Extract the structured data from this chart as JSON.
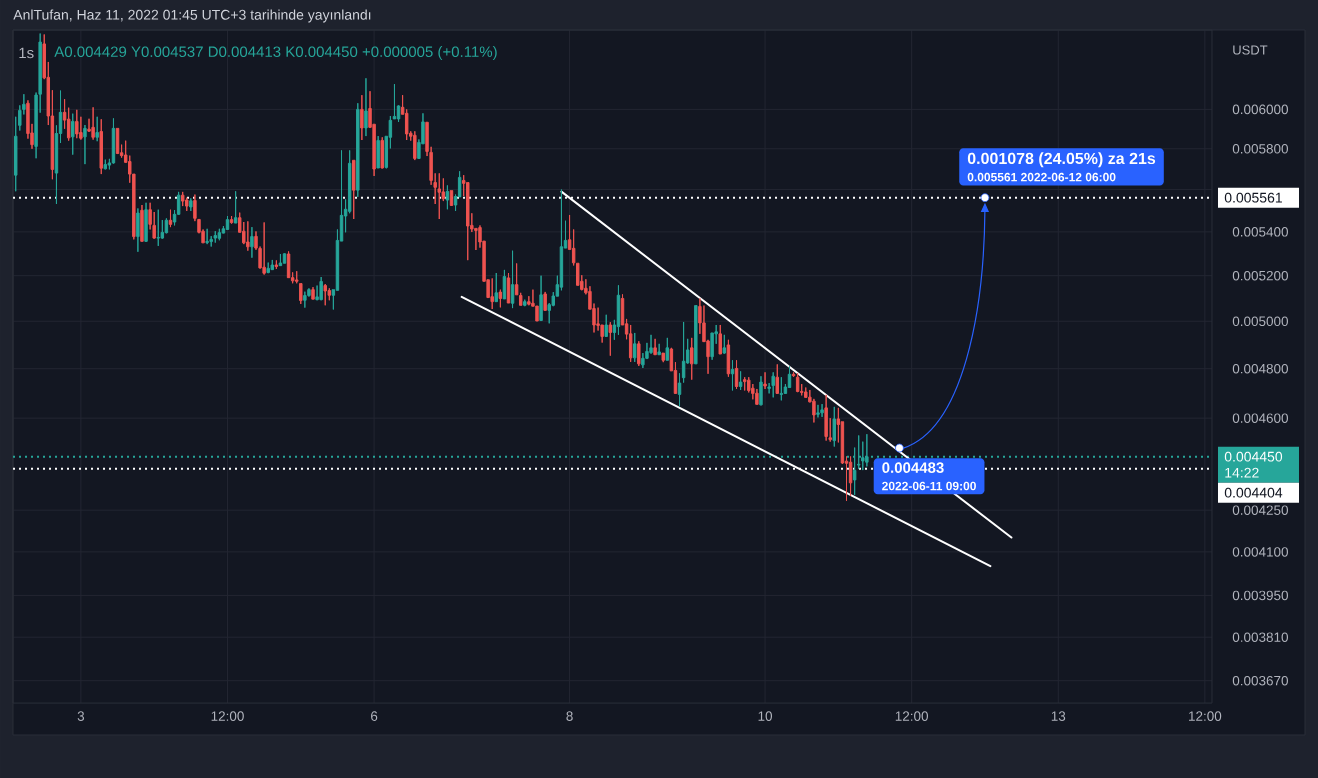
{
  "chart_data": {
    "type": "candlestick",
    "title": "1s",
    "subtitle": "A0.004429 Y0.004537 D0.004413 K0.004450 +0.000005 (+0.11%)",
    "ylabel": "USDT",
    "annotations": [
      "AnlTufan, Haz 11, 2022 01:45 UTC+3 tarihinde yayınlandı",
      "14:22",
      {
        "text": "0.001078 (24.05%) za 21s",
        "x": "2022-06-12T06:00",
        "y": 0.005561
      },
      {
        "text": "0.005561 2022-06-12 06:00",
        "x": "2022-06-12T06:00",
        "y": 0.005561
      },
      {
        "text": "0.004483",
        "x": "2022-06-11T09:00",
        "y": 0.004483
      },
      "2022-06-11 09:00"
    ],
    "x": [
      "2022-06-02T08:00",
      "2022-06-02T09:00",
      "2022-06-02T10:00",
      "2022-06-02T11:00",
      "2022-06-02T12:00",
      "2022-06-02T13:00",
      "2022-06-02T14:00",
      "2022-06-02T15:00",
      "2022-06-02T16:00",
      "2022-06-02T17:00",
      "2022-06-02T18:00",
      "2022-06-02T19:00",
      "2022-06-02T20:00",
      "2022-06-02T21:00",
      "2022-06-02T22:00",
      "2022-06-02T23:00",
      "2022-06-03T00:00",
      "2022-06-03T01:00",
      "2022-06-03T02:00",
      "2022-06-03T03:00",
      "2022-06-03T04:00",
      "2022-06-03T05:00",
      "2022-06-03T06:00",
      "2022-06-03T07:00",
      "2022-06-03T08:00",
      "2022-06-03T09:00",
      "2022-06-03T10:00",
      "2022-06-03T11:00",
      "2022-06-03T12:00",
      "2022-06-03T13:00",
      "2022-06-03T14:00",
      "2022-06-03T15:00",
      "2022-06-03T16:00",
      "2022-06-03T17:00",
      "2022-06-03T18:00",
      "2022-06-03T19:00",
      "2022-06-03T20:00",
      "2022-06-03T21:00",
      "2022-06-03T22:00",
      "2022-06-03T23:00",
      "2022-06-04T00:00",
      "2022-06-04T01:00",
      "2022-06-04T02:00",
      "2022-06-04T03:00",
      "2022-06-04T04:00",
      "2022-06-04T05:00",
      "2022-06-04T06:00",
      "2022-06-04T07:00",
      "2022-06-04T08:00",
      "2022-06-04T09:00",
      "2022-06-04T10:00",
      "2022-06-04T11:00",
      "2022-06-04T12:00",
      "2022-06-04T13:00",
      "2022-06-04T14:00",
      "2022-06-04T15:00",
      "2022-06-04T16:00",
      "2022-06-04T17:00",
      "2022-06-04T18:00",
      "2022-06-04T19:00",
      "2022-06-04T20:00",
      "2022-06-04T21:00",
      "2022-06-04T22:00",
      "2022-06-04T23:00",
      "2022-06-05T00:00",
      "2022-06-05T01:00",
      "2022-06-05T02:00",
      "2022-06-05T03:00",
      "2022-06-05T04:00",
      "2022-06-05T05:00",
      "2022-06-05T06:00",
      "2022-06-05T07:00",
      "2022-06-05T08:00",
      "2022-06-05T09:00",
      "2022-06-05T10:00",
      "2022-06-05T11:00",
      "2022-06-05T12:00",
      "2022-06-05T13:00",
      "2022-06-05T14:00",
      "2022-06-05T15:00",
      "2022-06-05T16:00",
      "2022-06-05T17:00",
      "2022-06-05T18:00",
      "2022-06-05T19:00",
      "2022-06-05T20:00",
      "2022-06-05T21:00",
      "2022-06-05T22:00",
      "2022-06-05T23:00",
      "2022-06-06T00:00",
      "2022-06-06T01:00",
      "2022-06-06T02:00",
      "2022-06-06T03:00",
      "2022-06-06T04:00",
      "2022-06-06T05:00",
      "2022-06-06T06:00",
      "2022-06-06T07:00",
      "2022-06-06T08:00",
      "2022-06-06T09:00",
      "2022-06-06T10:00",
      "2022-06-06T11:00",
      "2022-06-06T12:00",
      "2022-06-06T13:00",
      "2022-06-06T14:00",
      "2022-06-06T15:00",
      "2022-06-06T16:00",
      "2022-06-06T17:00",
      "2022-06-06T18:00",
      "2022-06-06T19:00",
      "2022-06-06T20:00",
      "2022-06-06T21:00",
      "2022-06-06T22:00",
      "2022-06-06T23:00",
      "2022-06-07T00:00",
      "2022-06-07T01:00",
      "2022-06-07T02:00",
      "2022-06-07T03:00",
      "2022-06-07T04:00",
      "2022-06-07T05:00",
      "2022-06-07T06:00",
      "2022-06-07T07:00",
      "2022-06-07T08:00",
      "2022-06-07T09:00",
      "2022-06-07T10:00",
      "2022-06-07T11:00",
      "2022-06-07T12:00",
      "2022-06-07T13:00",
      "2022-06-07T14:00",
      "2022-06-07T15:00",
      "2022-06-07T16:00",
      "2022-06-07T17:00",
      "2022-06-07T18:00",
      "2022-06-07T19:00",
      "2022-06-07T20:00",
      "2022-06-07T21:00",
      "2022-06-07T22:00",
      "2022-06-07T23:00",
      "2022-06-08T00:00",
      "2022-06-08T01:00",
      "2022-06-08T02:00",
      "2022-06-08T03:00",
      "2022-06-08T04:00",
      "2022-06-08T05:00",
      "2022-06-08T06:00",
      "2022-06-08T07:00",
      "2022-06-08T08:00",
      "2022-06-08T09:00",
      "2022-06-08T10:00",
      "2022-06-08T11:00",
      "2022-06-08T12:00",
      "2022-06-08T13:00",
      "2022-06-08T14:00",
      "2022-06-08T15:00",
      "2022-06-08T16:00",
      "2022-06-08T17:00",
      "2022-06-08T18:00",
      "2022-06-08T19:00",
      "2022-06-08T20:00",
      "2022-06-08T21:00",
      "2022-06-08T22:00",
      "2022-06-08T23:00",
      "2022-06-09T00:00",
      "2022-06-09T01:00",
      "2022-06-09T02:00",
      "2022-06-09T03:00",
      "2022-06-09T04:00",
      "2022-06-09T05:00",
      "2022-06-09T06:00",
      "2022-06-09T07:00",
      "2022-06-09T08:00",
      "2022-06-09T09:00",
      "2022-06-09T10:00",
      "2022-06-09T11:00",
      "2022-06-09T12:00",
      "2022-06-09T13:00",
      "2022-06-09T14:00",
      "2022-06-09T15:00",
      "2022-06-09T16:00",
      "2022-06-09T17:00",
      "2022-06-09T18:00",
      "2022-06-09T19:00",
      "2022-06-09T20:00",
      "2022-06-09T21:00",
      "2022-06-09T22:00",
      "2022-06-09T23:00",
      "2022-06-10T00:00",
      "2022-06-10T01:00",
      "2022-06-10T02:00",
      "2022-06-10T03:00",
      "2022-06-10T04:00",
      "2022-06-10T05:00",
      "2022-06-10T06:00",
      "2022-06-10T07:00",
      "2022-06-10T08:00",
      "2022-06-10T09:00",
      "2022-06-10T10:00",
      "2022-06-10T11:00",
      "2022-06-10T12:00",
      "2022-06-10T13:00",
      "2022-06-10T14:00",
      "2022-06-10T15:00",
      "2022-06-10T16:00",
      "2022-06-10T17:00",
      "2022-06-10T18:00",
      "2022-06-10T19:00",
      "2022-06-10T20:00",
      "2022-06-10T21:00",
      "2022-06-10T22:00",
      "2022-06-10T23:00",
      "2022-06-11T00:00",
      "2022-06-11T01:00"
    ],
    "ohlc": [
      [
        0.00567,
        0.005962,
        0.005592,
        0.005863
      ],
      [
        0.005918,
        0.006021,
        0.005892,
        0.005995
      ],
      [
        0.006,
        0.006079,
        0.005974,
        0.006026
      ],
      [
        0.006032,
        0.006047,
        0.005851,
        0.005877
      ],
      [
        0.00588,
        0.005926,
        0.0058,
        0.005821
      ],
      [
        0.005812,
        0.006088,
        0.005753,
        0.006075
      ],
      [
        0.006079,
        0.006405,
        0.005983,
        0.006358
      ],
      [
        0.006348,
        0.0064,
        0.006158,
        0.006165
      ],
      [
        0.006168,
        0.00625,
        0.00592,
        0.005966
      ],
      [
        0.005966,
        0.0061,
        0.00565,
        0.005698
      ],
      [
        0.00568,
        0.005918,
        0.005531,
        0.005877
      ],
      [
        0.005877,
        0.006098,
        0.005829,
        0.005985
      ],
      [
        0.005985,
        0.006053,
        0.005901,
        0.005945
      ],
      [
        0.00595,
        0.006009,
        0.005841,
        0.005855
      ],
      [
        0.00586,
        0.005978,
        0.005771,
        0.005938
      ],
      [
        0.005938,
        0.005998,
        0.005853,
        0.005875
      ],
      [
        0.005882,
        0.005962,
        0.005846,
        0.005853
      ],
      [
        0.00586,
        0.00592,
        0.005724,
        0.005903
      ],
      [
        0.005899,
        0.005952,
        0.005885,
        0.005889
      ],
      [
        0.005908,
        0.006011,
        0.005846,
        0.005858
      ],
      [
        0.005858,
        0.005962,
        0.005838,
        0.005882
      ],
      [
        0.005887,
        0.005949,
        0.005675,
        0.005704
      ],
      [
        0.005701,
        0.005746,
        0.005698,
        0.005722
      ],
      [
        0.005719,
        0.00575,
        0.005698,
        0.00573
      ],
      [
        0.00573,
        0.005954,
        0.005727,
        0.005903
      ],
      [
        0.005903,
        0.005903,
        0.005774,
        0.005777
      ],
      [
        0.00578,
        0.005821,
        0.005756,
        0.005766
      ],
      [
        0.005769,
        0.005841,
        0.00573,
        0.005733
      ],
      [
        0.005737,
        0.005766,
        0.005633,
        0.005675
      ],
      [
        0.005675,
        0.005675,
        0.005365,
        0.005378
      ],
      [
        0.005378,
        0.00551,
        0.005308,
        0.005488
      ],
      [
        0.005501,
        0.005526,
        0.005356,
        0.005356
      ],
      [
        0.005356,
        0.005537,
        0.005353,
        0.005504
      ],
      [
        0.005504,
        0.005537,
        0.005411,
        0.005435
      ],
      [
        0.00543,
        0.005493,
        0.005368,
        0.005371
      ],
      [
        0.005371,
        0.005504,
        0.005335,
        0.005374
      ],
      [
        0.005371,
        0.005455,
        0.005368,
        0.005397
      ],
      [
        0.005396,
        0.005463,
        0.005393,
        0.005454
      ],
      [
        0.005454,
        0.005504,
        0.005422,
        0.005435
      ],
      [
        0.005446,
        0.005502,
        0.00543,
        0.005482
      ],
      [
        0.005482,
        0.005589,
        0.005479,
        0.005573
      ],
      [
        0.005573,
        0.005589,
        0.005521,
        0.005545
      ],
      [
        0.00555,
        0.005561,
        0.005498,
        0.005521
      ],
      [
        0.005517,
        0.005558,
        0.005498,
        0.005546
      ],
      [
        0.005548,
        0.005576,
        0.00545,
        0.005463
      ],
      [
        0.005458,
        0.005458,
        0.005393,
        0.005398
      ],
      [
        0.005403,
        0.005411,
        0.005349,
        0.005349
      ],
      [
        0.00535,
        0.005414,
        0.005343,
        0.005356
      ],
      [
        0.005355,
        0.00538,
        0.005332,
        0.005365
      ],
      [
        0.005371,
        0.005403,
        0.00535,
        0.005383
      ],
      [
        0.00537,
        0.005414,
        0.005361,
        0.005396
      ],
      [
        0.005394,
        0.005427,
        0.005393,
        0.005414
      ],
      [
        0.005411,
        0.005474,
        0.005411,
        0.005457
      ],
      [
        0.005457,
        0.005474,
        0.005438,
        0.005443
      ],
      [
        0.005441,
        0.005592,
        0.005441,
        0.005466
      ],
      [
        0.005466,
        0.00549,
        0.005396,
        0.005398
      ],
      [
        0.005403,
        0.005446,
        0.005343,
        0.005349
      ],
      [
        0.005353,
        0.005449,
        0.005313,
        0.005331
      ],
      [
        0.005331,
        0.005422,
        0.005281,
        0.005378
      ],
      [
        0.005379,
        0.005402,
        0.005317,
        0.005325
      ],
      [
        0.005323,
        0.005332,
        0.005232,
        0.005235
      ],
      [
        0.005238,
        0.005444,
        0.005205,
        0.005211
      ],
      [
        0.005214,
        0.005259,
        0.005211,
        0.005233
      ],
      [
        0.005227,
        0.005271,
        0.005227,
        0.005248
      ],
      [
        0.005248,
        0.005269,
        0.00523,
        0.005241
      ],
      [
        0.005245,
        0.005298,
        0.005245,
        0.005257
      ],
      [
        0.005256,
        0.005301,
        0.005256,
        0.005299
      ],
      [
        0.005298,
        0.00531,
        0.005191,
        0.005191
      ],
      [
        0.005191,
        0.005215,
        0.005166,
        0.005177
      ],
      [
        0.005181,
        0.00522,
        0.005166,
        0.005175
      ],
      [
        0.005165,
        0.005165,
        0.005075,
        0.00509
      ],
      [
        0.005091,
        0.005129,
        0.005059,
        0.005112
      ],
      [
        0.005112,
        0.005144,
        0.005107,
        0.005138
      ],
      [
        0.005138,
        0.005149,
        0.005096,
        0.005096
      ],
      [
        0.005094,
        0.005156,
        0.005091,
        0.005106
      ],
      [
        0.005094,
        0.005194,
        0.005091,
        0.005174
      ],
      [
        0.005156,
        0.005163,
        0.005069,
        0.005132
      ],
      [
        0.005134,
        0.005144,
        0.005091,
        0.005113
      ],
      [
        0.005113,
        0.005138,
        0.005051,
        0.005138
      ],
      [
        0.005135,
        0.005411,
        0.005135,
        0.00536
      ],
      [
        0.005357,
        0.005792,
        0.005357,
        0.005477
      ],
      [
        0.005474,
        0.005553,
        0.005398,
        0.005506
      ],
      [
        0.005496,
        0.005792,
        0.005487,
        0.005728
      ],
      [
        0.005743,
        0.005743,
        0.00546,
        0.005597
      ],
      [
        0.005597,
        0.006032,
        0.005565,
        0.006
      ],
      [
        0.006,
        0.006074,
        0.005844,
        0.005905
      ],
      [
        0.005905,
        0.006163,
        0.005864,
        0.005992
      ],
      [
        0.006005,
        0.006095,
        0.005905,
        0.005908
      ],
      [
        0.005924,
        0.005924,
        0.005666,
        0.0057
      ],
      [
        0.005705,
        0.005864,
        0.005705,
        0.005842
      ],
      [
        0.005842,
        0.005858,
        0.005703,
        0.005705
      ],
      [
        0.005708,
        0.005864,
        0.005703,
        0.005863
      ],
      [
        0.005858,
        0.005966,
        0.005802,
        0.005944
      ],
      [
        0.005951,
        0.006132,
        0.005951,
        0.005964
      ],
      [
        0.005951,
        0.006021,
        0.005936,
        0.006018
      ],
      [
        0.006011,
        0.006074,
        0.005975,
        0.005975
      ],
      [
        0.00598,
        0.006,
        0.005844,
        0.005875
      ],
      [
        0.005878,
        0.005888,
        0.005841,
        0.005863
      ],
      [
        0.005868,
        0.005888,
        0.005744,
        0.005752
      ],
      [
        0.005752,
        0.005847,
        0.005752,
        0.005832
      ],
      [
        0.005825,
        0.00598,
        0.005825,
        0.005936
      ],
      [
        0.005934,
        0.005934,
        0.005764,
        0.005787
      ],
      [
        0.005782,
        0.00581,
        0.005623,
        0.005644
      ],
      [
        0.005634,
        0.005679,
        0.005531,
        0.005611
      ],
      [
        0.005603,
        0.005679,
        0.00546,
        0.005587
      ],
      [
        0.005589,
        0.005654,
        0.005545,
        0.005556
      ],
      [
        0.00555,
        0.00562,
        0.005506,
        0.005591
      ],
      [
        0.005595,
        0.005595,
        0.005524,
        0.005524
      ],
      [
        0.005526,
        0.005576,
        0.005498,
        0.005567
      ],
      [
        0.005565,
        0.005689,
        0.005565,
        0.005659
      ],
      [
        0.005644,
        0.00567,
        0.005569,
        0.00563
      ],
      [
        0.005634,
        0.005634,
        0.00527,
        0.005427
      ],
      [
        0.00543,
        0.005487,
        0.005399,
        0.005413
      ],
      [
        0.005416,
        0.005416,
        0.005316,
        0.005406
      ],
      [
        0.00542,
        0.00543,
        0.005327,
        0.005353
      ],
      [
        0.005357,
        0.005357,
        0.005175,
        0.005175
      ],
      [
        0.005182,
        0.005182,
        0.005103,
        0.005103
      ],
      [
        0.005107,
        0.005188,
        0.005053,
        0.005085
      ],
      [
        0.005085,
        0.005212,
        0.005085,
        0.005124
      ],
      [
        0.005127,
        0.005138,
        0.00506,
        0.005099
      ],
      [
        0.005097,
        0.005226,
        0.005097,
        0.005196
      ],
      [
        0.00519,
        0.005212,
        0.005079,
        0.005079
      ],
      [
        0.005078,
        0.005313,
        0.005057,
        0.00516
      ],
      [
        0.00516,
        0.005255,
        0.005115,
        0.005115
      ],
      [
        0.005112,
        0.005124,
        0.005069,
        0.005069
      ],
      [
        0.005069,
        0.005094,
        0.005065,
        0.005085
      ],
      [
        0.005085,
        0.005109,
        0.005069,
        0.005074
      ],
      [
        0.005078,
        0.005138,
        0.005065,
        0.005065
      ],
      [
        0.005066,
        0.005066,
        0.005001,
        0.005001
      ],
      [
        0.005003,
        0.0052,
        0.005003,
        0.005115
      ],
      [
        0.005119,
        0.005128,
        0.005047,
        0.005047
      ],
      [
        0.005047,
        0.005079,
        0.004991,
        0.005072
      ],
      [
        0.005069,
        0.005127,
        0.005065,
        0.00511
      ],
      [
        0.005109,
        0.0052,
        0.005109,
        0.00516
      ],
      [
        0.005149,
        0.0056,
        0.005135,
        0.005331
      ],
      [
        0.005325,
        0.005452,
        0.005325,
        0.00536
      ],
      [
        0.005363,
        0.005479,
        0.005319,
        0.005319
      ],
      [
        0.005324,
        0.005411,
        0.005246,
        0.005258
      ],
      [
        0.005256,
        0.005256,
        0.005157,
        0.005157
      ],
      [
        0.005175,
        0.005202,
        0.005135,
        0.005139
      ],
      [
        0.005144,
        0.005184,
        0.005117,
        0.005124
      ],
      [
        0.00513,
        0.005153,
        0.005052,
        0.005052
      ],
      [
        0.005055,
        0.005077,
        0.004952,
        0.004984
      ],
      [
        0.004989,
        0.005059,
        0.00496,
        0.004982
      ],
      [
        0.004984,
        0.004984,
        0.004909,
        0.004935
      ],
      [
        0.004935,
        0.005028,
        0.004935,
        0.004984
      ],
      [
        0.004984,
        0.004996,
        0.004854,
        0.004952
      ],
      [
        0.004952,
        0.005006,
        0.004921,
        0.004984
      ],
      [
        0.004977,
        0.005157,
        0.004942,
        0.005113
      ],
      [
        0.005099,
        0.005117,
        0.004984,
        0.004984
      ],
      [
        0.004989,
        0.00501,
        0.004923,
        0.004945
      ],
      [
        0.004946,
        0.004984,
        0.004828,
        0.004845
      ],
      [
        0.004845,
        0.00495,
        0.004828,
        0.004904
      ],
      [
        0.004904,
        0.004915,
        0.004811,
        0.00482
      ],
      [
        0.004816,
        0.004865,
        0.004803,
        0.004843
      ],
      [
        0.004843,
        0.004908,
        0.00484,
        0.004872
      ],
      [
        0.004867,
        0.004942,
        0.004862,
        0.004887
      ],
      [
        0.004887,
        0.004925,
        0.004858,
        0.004858
      ],
      [
        0.004858,
        0.004904,
        0.004858,
        0.00487
      ],
      [
        0.004865,
        0.004865,
        0.004827,
        0.004835
      ],
      [
        0.004835,
        0.004929,
        0.004835,
        0.004887
      ],
      [
        0.004882,
        0.004887,
        0.004791,
        0.004791
      ],
      [
        0.004793,
        0.004827,
        0.004699,
        0.004699
      ],
      [
        0.004695,
        0.004781,
        0.004647,
        0.004741
      ],
      [
        0.004763,
        0.004997,
        0.004743,
        0.004831
      ],
      [
        0.004824,
        0.004925,
        0.004821,
        0.004878
      ],
      [
        0.004887,
        0.004929,
        0.004755,
        0.00482
      ],
      [
        0.00482,
        0.005068,
        0.00482,
        0.005068
      ],
      [
        0.005064,
        0.005099,
        0.004946,
        0.004993
      ],
      [
        0.004993,
        0.005068,
        0.004913,
        0.004913
      ],
      [
        0.004916,
        0.004921,
        0.004779,
        0.00485
      ],
      [
        0.00485,
        0.00495,
        0.004837,
        0.00495
      ],
      [
        0.004946,
        0.004984,
        0.004904,
        0.004955
      ],
      [
        0.004946,
        0.004984,
        0.004861,
        0.004861
      ],
      [
        0.004865,
        0.004942,
        0.004862,
        0.004887
      ],
      [
        0.004899,
        0.004921,
        0.004767,
        0.004779
      ],
      [
        0.004779,
        0.004835,
        0.004711,
        0.004797
      ],
      [
        0.004801,
        0.004835,
        0.004717,
        0.004727
      ],
      [
        0.004727,
        0.004789,
        0.004713,
        0.004745
      ],
      [
        0.004755,
        0.004765,
        0.004711,
        0.004747
      ],
      [
        0.004753,
        0.004765,
        0.004703,
        0.004711
      ],
      [
        0.00472,
        0.004737,
        0.004675,
        0.004699
      ],
      [
        0.0047,
        0.004717,
        0.004655,
        0.004655
      ],
      [
        0.004653,
        0.004769,
        0.004651,
        0.004745
      ],
      [
        0.004737,
        0.004785,
        0.004717,
        0.004729
      ],
      [
        0.004719,
        0.004741,
        0.004699,
        0.004725
      ],
      [
        0.004731,
        0.004785,
        0.004683,
        0.004769
      ],
      [
        0.004765,
        0.004818,
        0.004699,
        0.004699
      ],
      [
        0.004695,
        0.004765,
        0.004671,
        0.004699
      ],
      [
        0.004699,
        0.004737,
        0.004699,
        0.004725
      ],
      [
        0.004723,
        0.00481,
        0.004721,
        0.004777
      ],
      [
        0.004777,
        0.004785,
        0.004767,
        0.004771
      ],
      [
        0.004765,
        0.004781,
        0.004704,
        0.004707
      ],
      [
        0.004707,
        0.004737,
        0.004691,
        0.004703
      ],
      [
        0.004705,
        0.004723,
        0.004683,
        0.004683
      ],
      [
        0.004684,
        0.004713,
        0.004663,
        0.004665
      ],
      [
        0.004668,
        0.004677,
        0.004583,
        0.004613
      ],
      [
        0.004615,
        0.004653,
        0.004603,
        0.004621
      ],
      [
        0.004621,
        0.004656,
        0.004605,
        0.004633
      ],
      [
        0.004641,
        0.004693,
        0.004512,
        0.004528
      ],
      [
        0.004523,
        0.0046,
        0.004508,
        0.004516
      ],
      [
        0.004512,
        0.004645,
        0.004489,
        0.004597
      ],
      [
        0.004597,
        0.004641,
        0.004505,
        0.004575
      ],
      [
        0.004586,
        0.004586,
        0.004422,
        0.004426
      ],
      [
        0.004433,
        0.004451,
        0.004284,
        0.004425
      ],
      [
        0.004429,
        0.004451,
        0.004303,
        0.004351
      ],
      [
        0.004362,
        0.004485,
        0.004306,
        0.004398
      ],
      [
        0.004418,
        0.004532,
        0.004403,
        0.004421
      ],
      [
        0.004434,
        0.004508,
        0.004399,
        0.004446
      ],
      [
        0.004429,
        0.004537,
        0.004413,
        0.00445
      ]
    ],
    "colors": [
      "#26a69a",
      "#26a69a",
      "#26a69a",
      "#ef5350",
      "#ef5350",
      "#26a69a",
      "#26a69a",
      "#ef5350",
      "#ef5350",
      "#ef5350",
      "#26a69a",
      "#26a69a",
      "#ef5350",
      "#ef5350",
      "#26a69a",
      "#ef5350",
      "#ef5350",
      "#26a69a",
      "#ef5350",
      "#ef5350",
      "#26a69a",
      "#ef5350",
      "#26a69a",
      "#26a69a",
      "#26a69a",
      "#ef5350",
      "#ef5350",
      "#ef5350",
      "#ef5350",
      "#ef5350",
      "#26a69a",
      "#ef5350",
      "#26a69a",
      "#ef5350",
      "#ef5350",
      "#26a69a",
      "#26a69a",
      "#26a69a",
      "#ef5350",
      "#26a69a",
      "#26a69a",
      "#ef5350",
      "#ef5350",
      "#26a69a",
      "#ef5350",
      "#ef5350",
      "#ef5350",
      "#26a69a",
      "#26a69a",
      "#26a69a",
      "#26a69a",
      "#26a69a",
      "#26a69a",
      "#ef5350",
      "#26a69a",
      "#ef5350",
      "#ef5350",
      "#ef5350",
      "#26a69a",
      "#ef5350",
      "#ef5350",
      "#ef5350",
      "#26a69a",
      "#26a69a",
      "#ef5350",
      "#26a69a",
      "#26a69a",
      "#ef5350",
      "#ef5350",
      "#ef5350",
      "#ef5350",
      "#26a69a",
      "#26a69a",
      "#ef5350",
      "#26a69a",
      "#26a69a",
      "#ef5350",
      "#ef5350",
      "#26a69a",
      "#26a69a",
      "#26a69a",
      "#26a69a",
      "#26a69a",
      "#ef5350",
      "#26a69a",
      "#ef5350",
      "#26a69a",
      "#ef5350",
      "#ef5350",
      "#26a69a",
      "#ef5350",
      "#26a69a",
      "#26a69a",
      "#26a69a",
      "#26a69a",
      "#ef5350",
      "#ef5350",
      "#ef5350",
      "#ef5350",
      "#26a69a",
      "#26a69a",
      "#ef5350",
      "#ef5350",
      "#ef5350",
      "#ef5350",
      "#ef5350",
      "#26a69a",
      "#ef5350",
      "#26a69a",
      "#26a69a",
      "#ef5350",
      "#ef5350",
      "#ef5350",
      "#ef5350",
      "#ef5350",
      "#ef5350",
      "#ef5350",
      "#ef5350",
      "#26a69a",
      "#ef5350",
      "#26a69a",
      "#ef5350",
      "#26a69a",
      "#ef5350",
      "#ef5350",
      "#26a69a",
      "#ef5350",
      "#ef5350",
      "#ef5350",
      "#26a69a",
      "#ef5350",
      "#26a69a",
      "#26a69a",
      "#26a69a",
      "#26a69a",
      "#26a69a",
      "#ef5350",
      "#ef5350",
      "#ef5350",
      "#ef5350",
      "#ef5350",
      "#ef5350",
      "#ef5350",
      "#ef5350",
      "#ef5350",
      "#26a69a",
      "#ef5350",
      "#26a69a",
      "#26a69a",
      "#ef5350",
      "#ef5350",
      "#ef5350",
      "#26a69a",
      "#ef5350",
      "#26a69a",
      "#26a69a",
      "#26a69a",
      "#ef5350",
      "#26a69a",
      "#ef5350",
      "#26a69a",
      "#ef5350",
      "#ef5350",
      "#26a69a",
      "#26a69a",
      "#26a69a",
      "#ef5350",
      "#26a69a",
      "#ef5350",
      "#ef5350",
      "#ef5350",
      "#26a69a",
      "#26a69a",
      "#ef5350",
      "#26a69a",
      "#ef5350",
      "#26a69a",
      "#ef5350",
      "#26a69a",
      "#ef5350",
      "#ef5350",
      "#ef5350",
      "#ef5350",
      "#26a69a",
      "#ef5350",
      "#26a69a",
      "#26a69a",
      "#ef5350",
      "#26a69a",
      "#26a69a",
      "#26a69a",
      "#ef5350",
      "#ef5350",
      "#ef5350",
      "#ef5350",
      "#ef5350",
      "#ef5350",
      "#26a69a",
      "#26a69a",
      "#ef5350",
      "#ef5350",
      "#26a69a",
      "#ef5350",
      "#ef5350",
      "#ef5350",
      "#ef5350",
      "#26a69a",
      "#26a69a",
      "#26a69a",
      "#26a69a"
    ],
    "series": [
      {
        "type": "line",
        "color": "#ffffff",
        "x": [
          "2022-06-07T22:00",
          "2022-06-12T12:30"
        ],
        "values": [
          0.00559,
          0.004151
        ]
      },
      {
        "type": "line",
        "color": "#ffffff",
        "x": [
          "2022-06-06T21:30",
          "2022-06-12T07:20"
        ],
        "values": [
          0.005106,
          0.00405
        ]
      }
    ],
    "ref_lines": [
      {
        "axis": "y",
        "value": 0.005561,
        "label": "0.005561",
        "color": "#ffffff",
        "line_style": "dotted"
      },
      {
        "axis": "y",
        "value": 0.004404,
        "label": "0.004404",
        "color": "#ffffff",
        "line_style": "dotted"
      },
      {
        "axis": "y",
        "value": 0.00445,
        "label": "0.004450",
        "color": "#26a69a",
        "line_style": "dotted"
      }
    ],
    "xlim": [
      "2022-06-02T07:20",
      "2022-06-14T13:45"
    ],
    "ylim": [
      0.0036,
      0.006424
    ],
    "xticks": [
      {
        "value": "2022-06-03T00:00",
        "label": "3"
      },
      {
        "value": "2022-06-04T12:00",
        "label": "12:00"
      },
      {
        "value": "2022-06-06T00:00",
        "label": "6"
      },
      {
        "value": "2022-06-08T00:00",
        "label": "8"
      },
      {
        "value": "2022-06-10T00:00",
        "label": "10"
      },
      {
        "value": "2022-06-11T12:00",
        "label": "12:00"
      },
      {
        "value": "2022-06-13T00:00",
        "label": "13"
      },
      {
        "value": "2022-06-14T12:00",
        "label": "12:00"
      }
    ],
    "yticks": [
      {
        "value": 0.006,
        "label": "0.006000"
      },
      {
        "value": 0.0058,
        "label": "0.005800"
      },
      {
        "value": 0.0056,
        "label": null
      },
      {
        "value": 0.0054,
        "label": "0.005400"
      },
      {
        "value": 0.0052,
        "label": "0.005200"
      },
      {
        "value": 0.005,
        "label": "0.005000"
      },
      {
        "value": 0.0048,
        "label": "0.004800"
      },
      {
        "value": 0.0046,
        "label": "0.004600"
      },
      {
        "value": 0.00425,
        "label": "0.004250"
      },
      {
        "value": 0.0041,
        "label": "0.004100"
      },
      {
        "value": 0.00395,
        "label": "0.003950"
      },
      {
        "value": 0.00381,
        "label": "0.003810"
      },
      {
        "value": 0.00367,
        "label": "0.003670"
      }
    ],
    "grid": true,
    "log": "y"
  }
}
